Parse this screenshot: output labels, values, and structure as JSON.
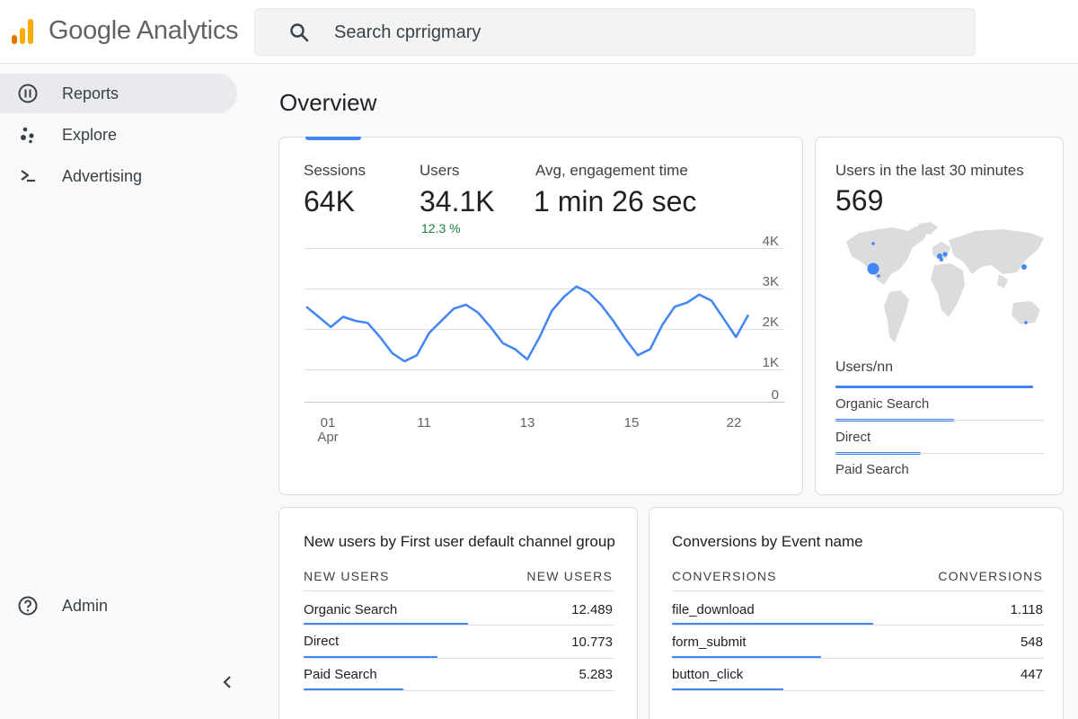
{
  "header": {
    "brand": "Google Analytics",
    "search_value": "Search cprrigmary"
  },
  "sidebar": {
    "items": [
      {
        "label": "Reports",
        "icon": "reports-icon",
        "active": true
      },
      {
        "label": "Explore",
        "icon": "explore-icon",
        "active": false
      },
      {
        "label": "Advertising",
        "icon": "advertising-icon",
        "active": false
      }
    ],
    "admin": {
      "label": "Admin",
      "icon": "help-circle-icon"
    }
  },
  "main": {
    "title": "Overview",
    "metrics": [
      {
        "label": "Sessions",
        "value": "64K"
      },
      {
        "label": "Users",
        "value": "34.1K",
        "change": "12.3 %"
      },
      {
        "label": "Avg, engagement time",
        "value": "1 min 26 sec"
      }
    ]
  },
  "chart_data": {
    "type": "line",
    "ylim": [
      0,
      4000
    ],
    "yticks": [
      "4K",
      "3K",
      "2K",
      "1K",
      "0"
    ],
    "xticks": [
      {
        "label": "01",
        "sub": "Apr"
      },
      {
        "label": "11",
        "sub": ""
      },
      {
        "label": "13",
        "sub": ""
      },
      {
        "label": "15",
        "sub": ""
      },
      {
        "label": "22",
        "sub": ""
      }
    ],
    "series": [
      {
        "values": [
          2550,
          2300,
          2050,
          2300,
          2200,
          2150,
          1800,
          1400,
          1200,
          1350,
          1900,
          2200,
          2500,
          2600,
          2400,
          2050,
          1650,
          1500,
          1250,
          1800,
          2450,
          2800,
          3050,
          2900,
          2600,
          2200,
          1750,
          1350,
          1500,
          2100,
          2550,
          2650,
          2850,
          2700,
          2250,
          1800,
          2350
        ]
      }
    ],
    "color": "#4285f4"
  },
  "realtime": {
    "title": "Users in the last 30 minutes",
    "value": "569",
    "list_head": "Users/nn",
    "rows": [
      {
        "label": "Organic Search",
        "fraction": 0.57
      },
      {
        "label": "Direct",
        "fraction": 0.41
      },
      {
        "label": "Paid Search",
        "fraction": 0
      }
    ],
    "head_fraction": 0.95
  },
  "new_users": {
    "title": "New users by First user default channel group",
    "col1": "NEW USERS",
    "col2": "NEW USERS",
    "rows": [
      {
        "label": "Organic Search",
        "value": "12.489",
        "fraction": 0.53
      },
      {
        "label": "Direct",
        "value": "10.773",
        "fraction": 0.43
      },
      {
        "label": "Paid Search",
        "value": "5.283",
        "fraction": 0.32
      }
    ]
  },
  "conversions": {
    "title": "Conversions by Event name",
    "col1": "CONVERSIONS",
    "col2": "CONVERSIONS",
    "rows": [
      {
        "label": "file_download",
        "value": "1.118",
        "fraction": 0.54
      },
      {
        "label": "form_submit",
        "value": "548",
        "fraction": 0.4
      },
      {
        "label": "button_click",
        "value": "447",
        "fraction": 0.3
      }
    ]
  },
  "colors": {
    "accent": "#4285f4",
    "positive": "#188038",
    "logo_orange": "#f9ab00",
    "logo_dark": "#e37400"
  }
}
